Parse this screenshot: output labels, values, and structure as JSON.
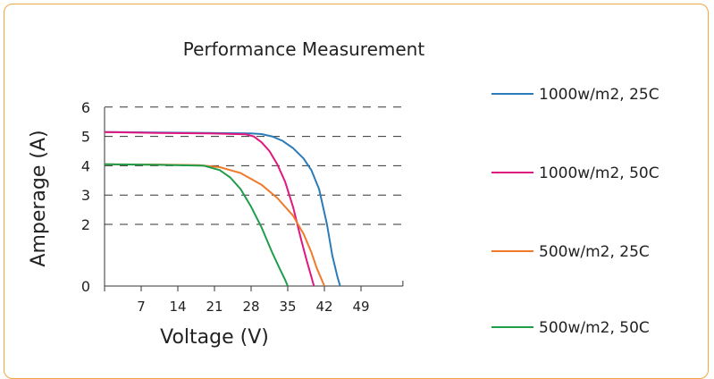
{
  "chart_data": {
    "type": "line",
    "title": "Performance Measurement",
    "xlabel": "Voltage (V)",
    "ylabel": "Amperage (A)",
    "x_ticks": [
      7,
      14,
      21,
      28,
      35,
      42,
      49
    ],
    "y_ticks": [
      0,
      2,
      3,
      4,
      5,
      6
    ],
    "xlim": [
      0,
      57
    ],
    "ylim": [
      0,
      6
    ],
    "grid": "dashed horizontal",
    "legend": "right",
    "series": [
      {
        "name": "1000w/m2, 25C",
        "color": "#2b7bb9",
        "x": [
          0,
          10,
          20,
          28,
          30,
          32,
          34,
          36,
          38,
          39.5,
          41,
          42.5,
          43.5,
          44.5,
          45
        ],
        "y": [
          5.15,
          5.13,
          5.12,
          5.1,
          5.08,
          5.0,
          4.85,
          4.6,
          4.25,
          3.85,
          3.2,
          2.0,
          1.0,
          0.3,
          0
        ]
      },
      {
        "name": "1000w/m2, 50C",
        "color": "#e0177f",
        "x": [
          0,
          10,
          20,
          27,
          28.5,
          30,
          31.5,
          33,
          34.5,
          36,
          37.5,
          38.5,
          39.5,
          40
        ],
        "y": [
          5.15,
          5.12,
          5.1,
          5.07,
          5.0,
          4.8,
          4.5,
          4.05,
          3.45,
          2.6,
          1.55,
          0.9,
          0.3,
          0
        ]
      },
      {
        "name": "500w/m2, 25C",
        "color": "#f07a2a",
        "x": [
          0,
          10,
          18,
          22,
          26,
          30,
          33,
          36,
          38,
          39.5,
          40.5,
          41.5,
          42
        ],
        "y": [
          4.05,
          4.04,
          4.02,
          3.95,
          3.75,
          3.35,
          2.9,
          2.3,
          1.7,
          1.1,
          0.6,
          0.2,
          0
        ]
      },
      {
        "name": "500w/m2, 50C",
        "color": "#1f9d4a",
        "x": [
          0,
          10,
          19,
          22,
          24,
          26,
          28,
          30,
          32,
          33.5,
          34.5,
          35
        ],
        "y": [
          4.05,
          4.03,
          4.0,
          3.85,
          3.6,
          3.2,
          2.6,
          1.9,
          1.1,
          0.55,
          0.2,
          0
        ]
      }
    ]
  }
}
